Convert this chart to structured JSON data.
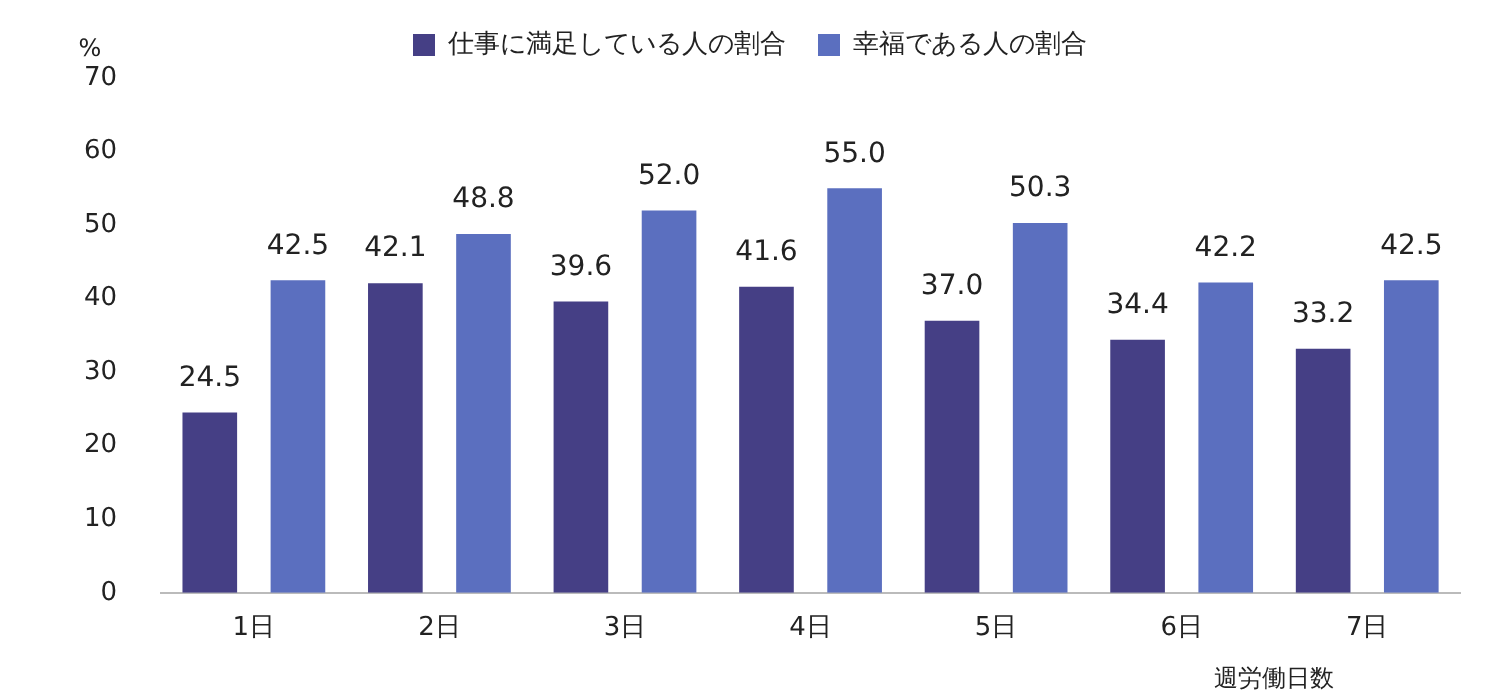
{
  "chart_data": {
    "type": "bar",
    "ylabel": "%",
    "xlabel": "週労働日数",
    "categories": [
      "1日",
      "2日",
      "3日",
      "4日",
      "5日",
      "6日",
      "7日"
    ],
    "series": [
      {
        "name": "仕事に満足している人の割合",
        "color": "#453f85",
        "values": [
          24.5,
          42.1,
          39.6,
          41.6,
          37.0,
          34.4,
          33.2
        ],
        "value_labels": [
          "24.5",
          "42.1",
          "39.6",
          "41.6",
          "37.0",
          "34.4",
          "33.2"
        ]
      },
      {
        "name": "幸福である人の割合",
        "color": "#5b6fbf",
        "values": [
          42.5,
          48.8,
          52.0,
          55.0,
          50.3,
          42.2,
          42.5
        ],
        "value_labels": [
          "42.5",
          "48.8",
          "52.0",
          "55.0",
          "50.3",
          "42.2",
          "42.5"
        ]
      }
    ],
    "ylim": [
      0,
      70
    ],
    "yticks": [
      0,
      10,
      20,
      30,
      40,
      50,
      60,
      70
    ],
    "grid": false,
    "legend": "top"
  }
}
